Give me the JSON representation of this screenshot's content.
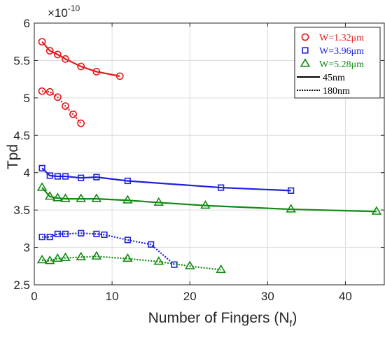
{
  "chart_data": {
    "type": "line",
    "title": "",
    "xlabel": "Number of Fingers (N",
    "xlabel_sub": "f",
    "xlabel_close": ")",
    "ylabel": "Tpd",
    "exponent_base": "×10",
    "exponent_power": "-10",
    "xlim": [
      0,
      45
    ],
    "ylim": [
      2.5,
      6
    ],
    "xticks": [
      0,
      10,
      20,
      30,
      40
    ],
    "yticks": [
      2.5,
      3,
      3.5,
      4,
      4.5,
      5,
      5.5,
      6
    ],
    "ytick_labels": [
      "2.5",
      "3",
      "3.5",
      "4",
      "4.5",
      "5",
      "5.5",
      "6"
    ],
    "grid": true,
    "legend_position": "top-right",
    "legend": [
      {
        "label": "W=1.32μm",
        "marker": "circle",
        "color": "#e41a1c"
      },
      {
        "label": "W=3.96μm",
        "marker": "square",
        "color": "#1f1fe0"
      },
      {
        "label": "W=5.28μm",
        "marker": "triangle",
        "color": "#138a13"
      },
      {
        "label": "45nm",
        "style": "solid",
        "color": "#000000"
      },
      {
        "label": "180nm",
        "style": "dotted",
        "color": "#000000"
      }
    ],
    "series": [
      {
        "width": "W=1.32μm",
        "node": "45nm",
        "marker": "circle",
        "color": "#e41a1c",
        "style": "solid",
        "x": [
          1,
          2,
          3,
          4,
          6,
          8,
          11
        ],
        "y": [
          5.75,
          5.63,
          5.58,
          5.52,
          5.42,
          5.35,
          5.29
        ]
      },
      {
        "width": "W=1.32μm",
        "node": "180nm",
        "marker": "circle",
        "color": "#e41a1c",
        "style": "dotted",
        "x": [
          1,
          2,
          3,
          4,
          5,
          6
        ],
        "y": [
          5.09,
          5.08,
          5.01,
          4.89,
          4.78,
          4.66
        ]
      },
      {
        "width": "W=3.96μm",
        "node": "45nm",
        "marker": "square",
        "color": "#1f1fe0",
        "style": "solid",
        "x": [
          1,
          2,
          3,
          4,
          6,
          8,
          12,
          24,
          33
        ],
        "y": [
          4.06,
          3.96,
          3.95,
          3.95,
          3.93,
          3.94,
          3.89,
          3.8,
          3.76
        ]
      },
      {
        "width": "W=3.96μm",
        "node": "180nm",
        "marker": "square",
        "color": "#1f1fe0",
        "style": "dotted",
        "x": [
          1,
          2,
          3,
          4,
          6,
          8,
          9,
          12,
          15,
          18
        ],
        "y": [
          3.14,
          3.14,
          3.18,
          3.18,
          3.19,
          3.18,
          3.17,
          3.1,
          3.04,
          2.77
        ]
      },
      {
        "width": "W=5.28μm",
        "node": "45nm",
        "marker": "triangle",
        "color": "#138a13",
        "style": "solid",
        "x": [
          1,
          2,
          3,
          4,
          6,
          8,
          12,
          16,
          22,
          33,
          44
        ],
        "y": [
          3.8,
          3.68,
          3.66,
          3.65,
          3.65,
          3.65,
          3.63,
          3.6,
          3.56,
          3.51,
          3.48
        ]
      },
      {
        "width": "W=5.28μm",
        "node": "180nm",
        "marker": "triangle",
        "color": "#138a13",
        "style": "dotted",
        "x": [
          1,
          2,
          3,
          4,
          6,
          8,
          12,
          16,
          20,
          24
        ],
        "y": [
          2.83,
          2.82,
          2.85,
          2.86,
          2.87,
          2.88,
          2.85,
          2.81,
          2.75,
          2.7
        ]
      }
    ]
  }
}
